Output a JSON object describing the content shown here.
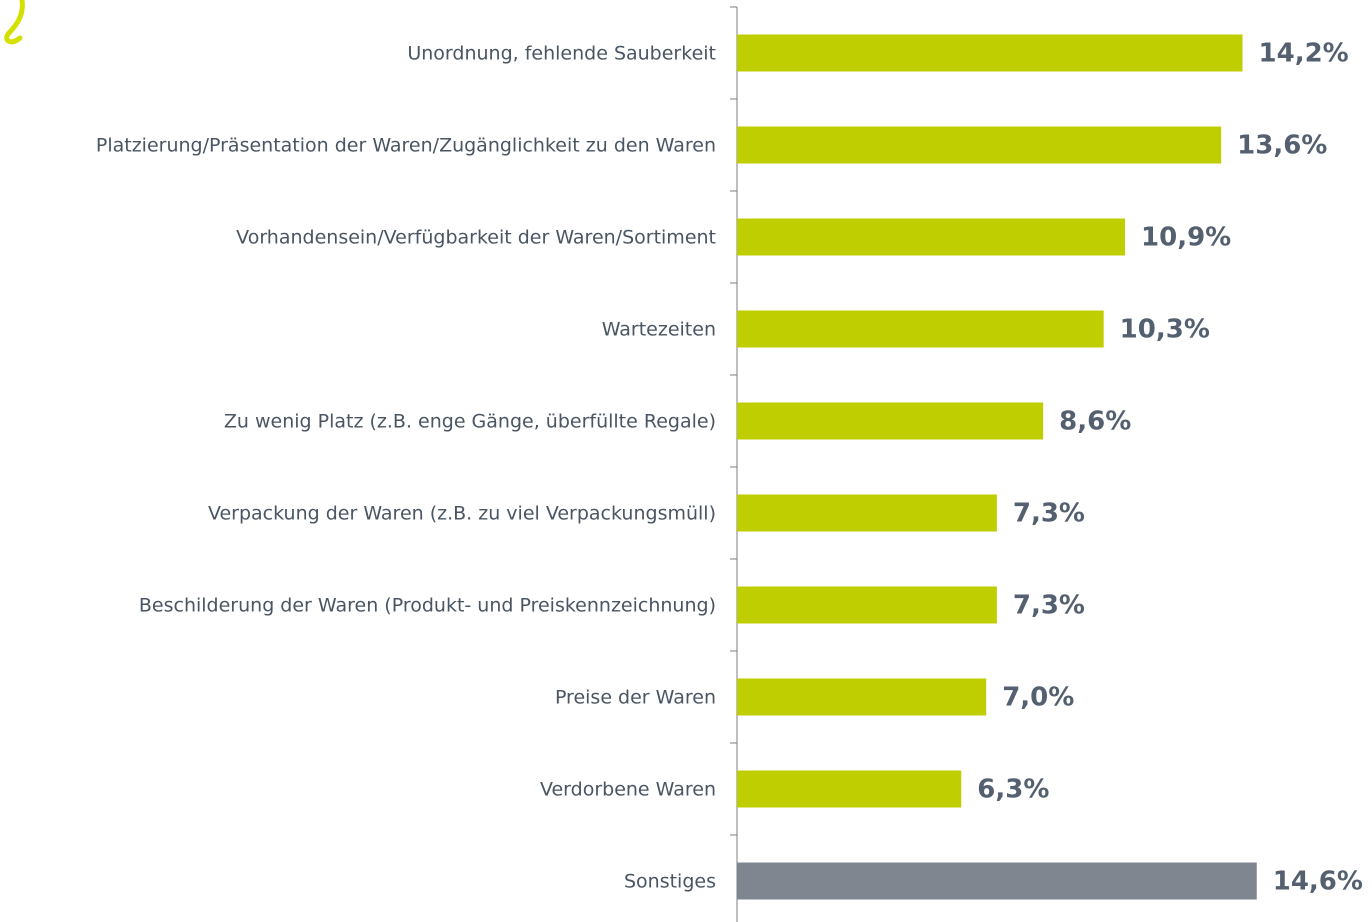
{
  "chart_data": {
    "type": "hbar",
    "categories": [
      "Unordnung, fehlende Sauberkeit",
      "Platzierung/Präsentation der Waren/Zugänglichkeit zu den Waren",
      "Vorhandensein/Verfügbarkeit der Waren/Sortiment",
      "Wartezeiten",
      "Zu wenig Platz (z.B. enge Gänge, überfüllte Regale)",
      "Verpackung der Waren (z.B. zu viel Verpackungsmüll)",
      "Beschilderung der Waren (Produkt- und Preiskennzeichnung)",
      "Preise der Waren",
      "Verdorbene Waren",
      "Sonstiges"
    ],
    "values": [
      14.2,
      13.6,
      10.9,
      10.3,
      8.6,
      7.3,
      7.3,
      7.0,
      6.3,
      14.6
    ],
    "value_labels": [
      "14,2%",
      "13,6%",
      "10,9%",
      "10,3%",
      "8,6%",
      "7,3%",
      "7,3%",
      "7,0%",
      "6,3%",
      "14,6%"
    ],
    "colors": [
      "#bfce00",
      "#bfce00",
      "#bfce00",
      "#bfce00",
      "#bfce00",
      "#bfce00",
      "#bfce00",
      "#bfce00",
      "#bfce00",
      "#7f8690"
    ]
  }
}
